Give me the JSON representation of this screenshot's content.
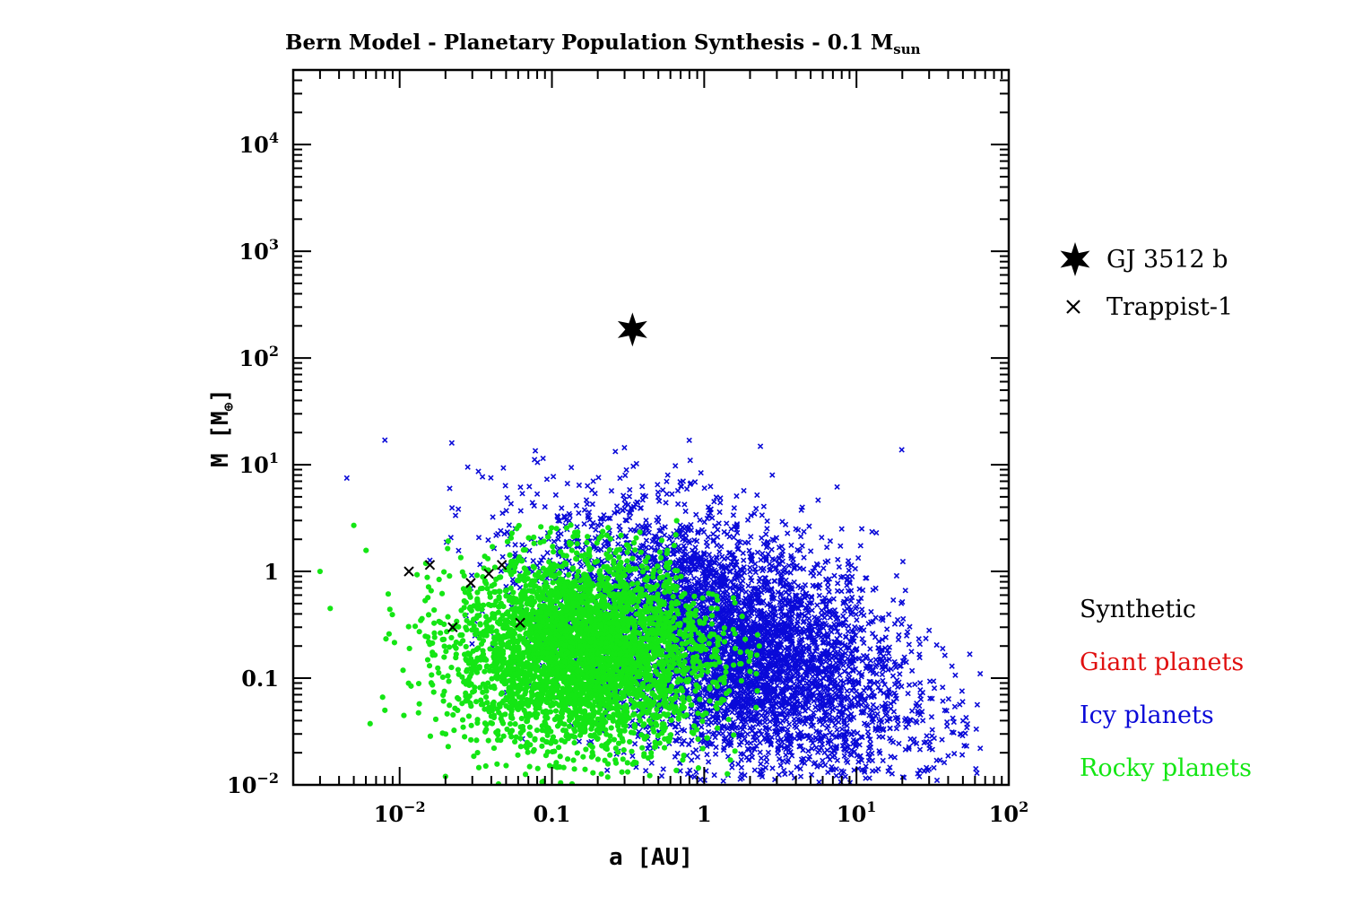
{
  "chart_data": {
    "type": "scatter",
    "title": "Bern Model - Planetary Population Synthesis - 0.1 M",
    "title_subscript": "sun",
    "xlabel": "a [AU]",
    "ylabel": "M [M",
    "ylabel_subscript": "⊕",
    "ylabel_close": "]",
    "x_scale": "log",
    "y_scale": "log",
    "xlim": [
      0.002,
      100
    ],
    "ylim": [
      0.01,
      50000
    ],
    "x_ticks": [
      {
        "value": 0.01,
        "base": "10",
        "exp": "−2"
      },
      {
        "value": 0.1,
        "base": "0.1",
        "exp": ""
      },
      {
        "value": 1,
        "base": "1",
        "exp": ""
      },
      {
        "value": 10,
        "base": "10",
        "exp": "1"
      },
      {
        "value": 100,
        "base": "10",
        "exp": "2"
      }
    ],
    "y_ticks": [
      {
        "value": 0.01,
        "base": "10",
        "exp": "−2"
      },
      {
        "value": 0.1,
        "base": "0.1",
        "exp": ""
      },
      {
        "value": 1,
        "base": "1",
        "exp": ""
      },
      {
        "value": 10,
        "base": "10",
        "exp": "1"
      },
      {
        "value": 100,
        "base": "10",
        "exp": "2"
      },
      {
        "value": 1000,
        "base": "10",
        "exp": "3"
      },
      {
        "value": 10000,
        "base": "10",
        "exp": "4"
      }
    ],
    "grid": false,
    "series": [
      {
        "name": "GJ 3512 b",
        "marker": "star",
        "color": "#000000",
        "points": [
          [
            0.338,
            185
          ]
        ]
      },
      {
        "name": "Trappist-1",
        "marker": "x",
        "color": "#000000",
        "points": [
          [
            0.0115,
            1.0
          ],
          [
            0.0158,
            1.15
          ],
          [
            0.0223,
            0.3
          ],
          [
            0.0293,
            0.78
          ],
          [
            0.0385,
            0.95
          ],
          [
            0.0469,
            1.15
          ],
          [
            0.0619,
            0.33
          ]
        ]
      }
    ],
    "synthetic_populations": [
      {
        "name": "Giant planets",
        "color": "#e01010",
        "marker": "x",
        "points": []
      },
      {
        "name": "Icy planets",
        "color": "#0a0ad8",
        "marker": "x",
        "cloud": {
          "x_range": [
            0.004,
            65
          ],
          "y_range": [
            0.01,
            18
          ],
          "core_log_center": [
            0.15,
            -0.7
          ]
        },
        "sample_points": [
          [
            0.0045,
            7.5
          ],
          [
            0.008,
            17
          ],
          [
            0.022,
            16
          ],
          [
            0.028,
            9.5
          ],
          [
            0.035,
            7.7
          ],
          [
            0.11,
            3.0
          ],
          [
            0.3,
            4.7
          ],
          [
            0.5,
            3.2
          ],
          [
            1.1,
            3.8
          ],
          [
            2.8,
            8.0
          ],
          [
            4.0,
            2.5
          ],
          [
            8.0,
            2.5
          ],
          [
            13.5,
            2.3
          ],
          [
            30,
            0.28
          ],
          [
            38,
            0.05
          ],
          [
            48,
            0.03
          ],
          [
            65,
            0.022
          ]
        ]
      },
      {
        "name": "Rocky planets",
        "color": "#14e614",
        "marker": "dot",
        "cloud": {
          "x_range": [
            0.003,
            2.3
          ],
          "y_range": [
            0.01,
            3.0
          ],
          "core_log_center": [
            -0.8,
            -0.75
          ]
        },
        "sample_points": [
          [
            0.003,
            1.0
          ],
          [
            0.0035,
            0.45
          ],
          [
            0.005,
            2.7
          ],
          [
            0.008,
            0.05
          ],
          [
            0.02,
            0.012
          ],
          [
            0.1,
            0.2
          ],
          [
            0.2,
            0.3
          ],
          [
            1.2,
            0.09
          ],
          [
            1.6,
            0.19
          ],
          [
            2.2,
            0.11
          ],
          [
            2.3,
            0.2
          ]
        ]
      }
    ],
    "legend": {
      "placement": "right",
      "markers_header": "",
      "synthetic_header": "Synthetic"
    }
  }
}
